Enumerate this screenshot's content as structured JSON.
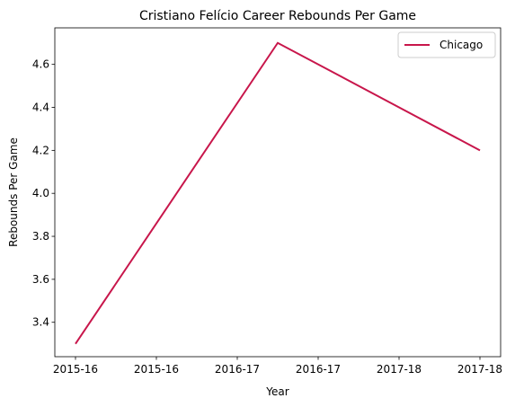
{
  "chart_data": {
    "type": "line",
    "title": "Cristiano Felício Career Rebounds Per Game",
    "xlabel": "Year",
    "ylabel": "Rebounds Per Game",
    "x_ticks": [
      "2015-16",
      "2015-16",
      "2016-17",
      "2016-17",
      "2017-18",
      "2017-18"
    ],
    "x": [
      "2015-16",
      "2016-17",
      "2017-18"
    ],
    "series": [
      {
        "name": "Chicago",
        "color": "#c8164b",
        "values": [
          3.3,
          4.7,
          4.2
        ]
      }
    ],
    "ylim": [
      3.24,
      4.77
    ],
    "y_ticks": [
      "3.4",
      "3.6",
      "3.8",
      "4.0",
      "4.2",
      "4.4",
      "4.6"
    ],
    "grid": false,
    "legend_position": "top-right"
  }
}
